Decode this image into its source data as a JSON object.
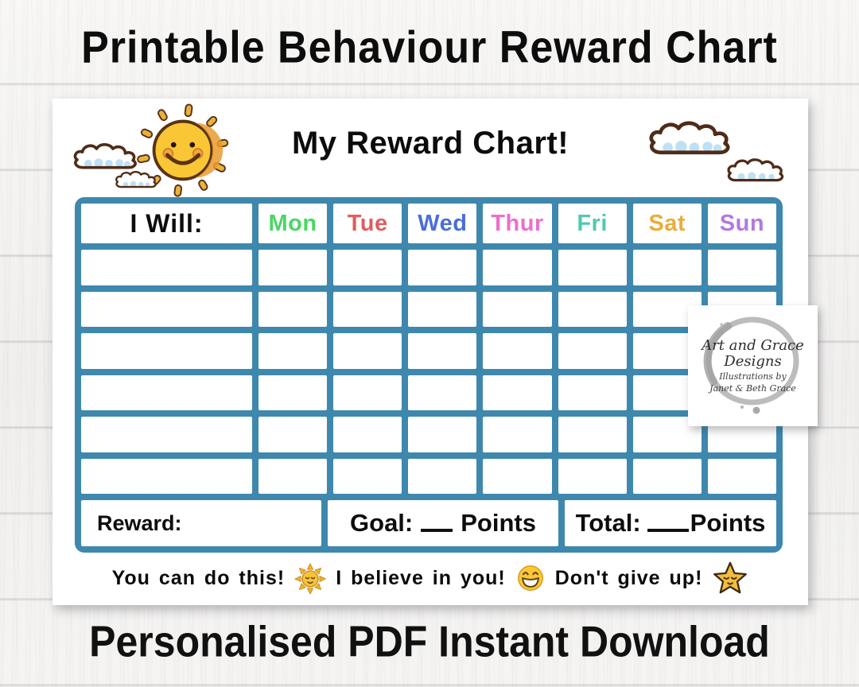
{
  "page": {
    "top_title": "Printable Behaviour Reward Chart",
    "bottom_title": "Personalised PDF Instant Download"
  },
  "colors": {
    "table_grid": "#3e88ae",
    "card_background": "#ffffff",
    "title_text": "#0d0d0d"
  },
  "chart_card": {
    "title": "My Reward Chart!",
    "table": {
      "task_header": "I Will:",
      "days": [
        {
          "label": "Mon",
          "color": "#4bd664"
        },
        {
          "label": "Tue",
          "color": "#e15d5d"
        },
        {
          "label": "Wed",
          "color": "#4a6ed9"
        },
        {
          "label": "Thur",
          "color": "#ec6fca"
        },
        {
          "label": "Fri",
          "color": "#4fc9b1"
        },
        {
          "label": "Sat",
          "color": "#e9ad3a"
        },
        {
          "label": "Sun",
          "color": "#b279e2"
        }
      ],
      "empty_rows": 6,
      "footer": {
        "reward_label": "Reward:",
        "goal_label": "Goal:",
        "total_label": "Total:",
        "points_label": "Points"
      }
    },
    "encouragements": [
      {
        "text": "You can do this!",
        "icon": "sun-emoji"
      },
      {
        "text": "I believe in you!",
        "icon": "grinning-face-emoji"
      },
      {
        "text": "Don't give up!",
        "icon": "star-emoji"
      }
    ],
    "icons": {
      "sun_illustration": "smiling-sun-with-rays",
      "clouds": "hand-drawn-clouds",
      "cheer_sun": "sun-emoji",
      "cheer_grin": "grinning-face-emoji",
      "cheer_star": "star-with-face-emoji"
    }
  },
  "watermark": {
    "line1": "Art and Grace",
    "line2": "Designs",
    "line3": "Illustrations by",
    "line4": "Janet & Beth Grace"
  }
}
